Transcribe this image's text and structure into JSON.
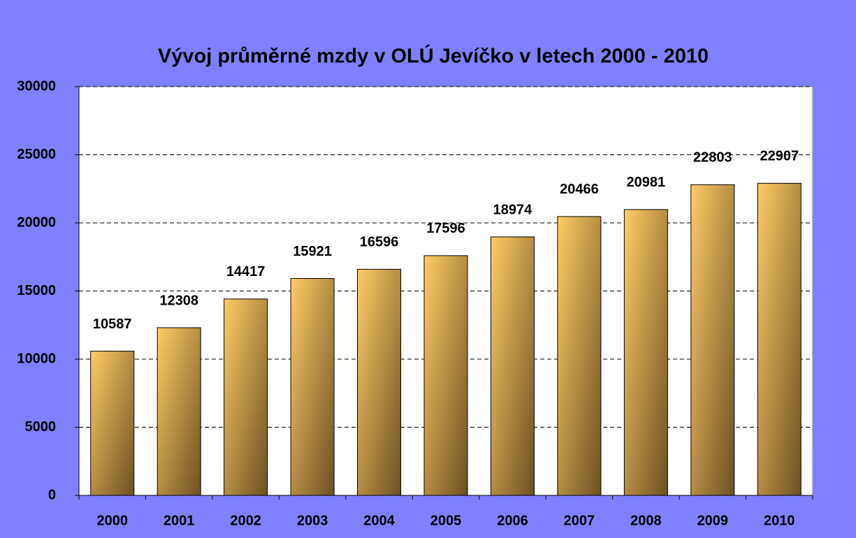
{
  "chart_data": {
    "type": "bar",
    "title": "Vývoj průměrné mzdy v OLÚ Jevíčko v letech 2000 - 2010",
    "categories": [
      "2000",
      "2001",
      "2002",
      "2003",
      "2004",
      "2005",
      "2006",
      "2007",
      "2008",
      "2009",
      "2010"
    ],
    "values": [
      10587,
      12308,
      14417,
      15921,
      16596,
      17596,
      18974,
      20466,
      20981,
      22803,
      22907
    ],
    "color": "#ffcc66",
    "ylim": [
      0,
      30000
    ],
    "yticks": [
      0,
      5000,
      10000,
      15000,
      20000,
      25000,
      30000
    ],
    "grid": true
  }
}
